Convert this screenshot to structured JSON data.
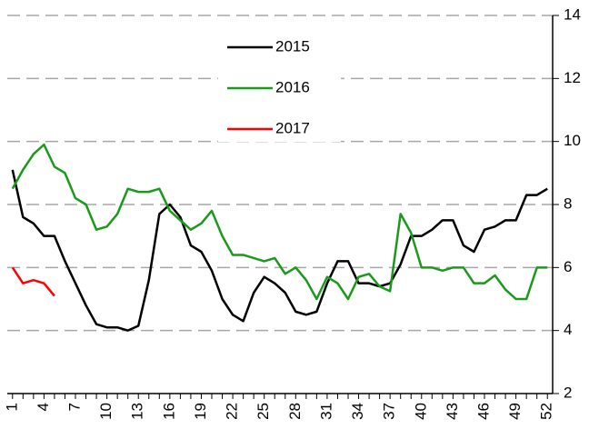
{
  "chart_data": {
    "type": "line",
    "x": [
      1,
      2,
      3,
      4,
      5,
      6,
      7,
      8,
      9,
      10,
      11,
      12,
      13,
      14,
      15,
      16,
      17,
      18,
      19,
      20,
      21,
      22,
      23,
      24,
      25,
      26,
      27,
      28,
      29,
      30,
      31,
      32,
      33,
      34,
      35,
      36,
      37,
      38,
      39,
      40,
      41,
      42,
      43,
      44,
      45,
      46,
      47,
      48,
      49,
      50,
      51,
      52
    ],
    "series": [
      {
        "name": "2015",
        "color": "#000000",
        "values": [
          9.1,
          7.6,
          7.4,
          7.0,
          7.0,
          6.2,
          5.5,
          4.8,
          4.2,
          4.1,
          4.1,
          4.0,
          4.15,
          5.6,
          7.7,
          8.0,
          7.6,
          6.7,
          6.5,
          5.9,
          5.0,
          4.5,
          4.3,
          5.2,
          5.7,
          5.5,
          5.2,
          4.6,
          4.5,
          4.6,
          5.5,
          6.2,
          6.2,
          5.5,
          5.5,
          5.4,
          5.5,
          6.1,
          7.0,
          7.0,
          7.2,
          7.5,
          7.5,
          6.7,
          6.5,
          7.2,
          7.3,
          7.5,
          7.5,
          8.3,
          8.3,
          8.5
        ]
      },
      {
        "name": "2016",
        "color": "#1a9a1a",
        "values": [
          8.5,
          9.1,
          9.6,
          9.9,
          9.2,
          9.0,
          8.2,
          8.0,
          7.2,
          7.3,
          7.7,
          8.5,
          8.4,
          8.4,
          8.5,
          7.8,
          7.5,
          7.2,
          7.4,
          7.8,
          7.0,
          6.4,
          6.4,
          6.3,
          6.2,
          6.3,
          5.8,
          6.0,
          5.6,
          5.0,
          5.7,
          5.5,
          5.0,
          5.7,
          5.8,
          5.4,
          5.25,
          7.7,
          7.1,
          6.0,
          6.0,
          5.9,
          6.0,
          6.0,
          5.5,
          5.5,
          5.75,
          5.3,
          5.0,
          5.0,
          6.0,
          6.0
        ]
      },
      {
        "name": "2017",
        "color": "#ff0000",
        "values": [
          6.0,
          5.5,
          5.6,
          5.5,
          5.1,
          null,
          null,
          null,
          null,
          null,
          null,
          null,
          null,
          null,
          null,
          null,
          null,
          null,
          null,
          null,
          null,
          null,
          null,
          null,
          null,
          null,
          null,
          null,
          null,
          null,
          null,
          null,
          null,
          null,
          null,
          null,
          null,
          null,
          null,
          null,
          null,
          null,
          null,
          null,
          null,
          null,
          null,
          null,
          null,
          null,
          null,
          null
        ]
      }
    ],
    "xlim": [
      0.5,
      52.5
    ],
    "xticks": [
      1,
      4,
      7,
      10,
      13,
      16,
      19,
      22,
      25,
      28,
      31,
      34,
      37,
      40,
      43,
      46,
      49,
      52
    ],
    "ylim": [
      2,
      14
    ],
    "yticks": [
      2,
      4,
      6,
      8,
      10,
      12,
      14
    ],
    "grid": true,
    "y_axis_side": "right",
    "legend": "top"
  }
}
